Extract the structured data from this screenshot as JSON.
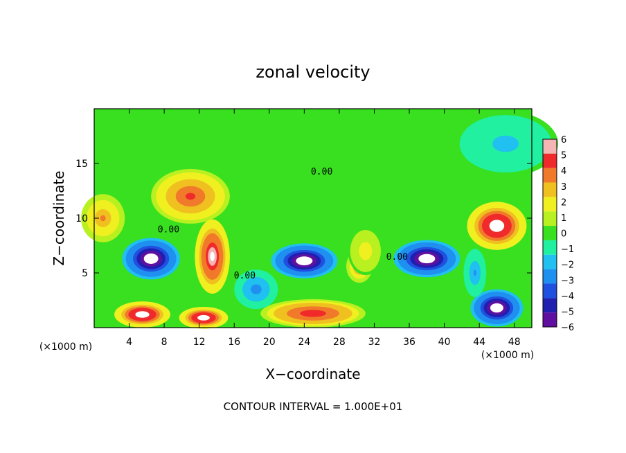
{
  "chart_data": {
    "type": "heatmap",
    "title": "zonal velocity",
    "xlabel": "X−coordinate",
    "ylabel": "Z−coordinate",
    "x_unit": "(×1000 m)",
    "z_unit": "(×1000 m)",
    "footer": "CONTOUR INTERVAL = 1.000E+01",
    "xlim": [
      0,
      50
    ],
    "zlim": [
      0,
      20
    ],
    "x_ticks": [
      4,
      8,
      12,
      16,
      20,
      24,
      28,
      32,
      36,
      40,
      44,
      48
    ],
    "z_ticks": [
      5,
      10,
      15
    ],
    "colorbar": {
      "levels": [
        6,
        5,
        4,
        3,
        2,
        1,
        0,
        -1,
        -2,
        -3,
        -4,
        -5,
        -6
      ],
      "level_labels": [
        "6",
        "5",
        "4",
        "3",
        "2",
        "1",
        "0",
        "−1",
        "−2",
        "−3",
        "−4",
        "−5",
        "−6"
      ],
      "colors": [
        "#f5b5b5",
        "#f02a2a",
        "#f07a2a",
        "#f0c020",
        "#f0f020",
        "#b8f020",
        "#38e020",
        "#20f0a0",
        "#20c0f0",
        "#2090f0",
        "#2050e0",
        "#2020b0",
        "#6010a0"
      ]
    },
    "contour_labels": [
      {
        "text": "0.00",
        "x": 26.0,
        "z": 14.0
      },
      {
        "text": "0.00",
        "x": 8.5,
        "z": 8.7
      },
      {
        "text": "0.00",
        "x": 17.2,
        "z": 4.5
      },
      {
        "text": "0.00",
        "x": 34.6,
        "z": 6.2
      }
    ],
    "blobs": [
      {
        "x": 11,
        "z": 12,
        "rx": 4.5,
        "rz": 2.5,
        "v": 4.6
      },
      {
        "x": 1,
        "z": 10,
        "rx": 2.5,
        "rz": 2.2,
        "v": 3.6
      },
      {
        "x": 13.5,
        "z": 6.5,
        "rx": 2.0,
        "rz": 3.4,
        "v": 6.5
      },
      {
        "x": 24,
        "z": 6.1,
        "rx": 3.8,
        "rz": 1.6,
        "v": -7.0
      },
      {
        "x": 6.5,
        "z": 6.3,
        "rx": 3.3,
        "rz": 1.9,
        "v": -7.0
      },
      {
        "x": 38,
        "z": 6.3,
        "rx": 3.8,
        "rz": 1.7,
        "v": -7.0
      },
      {
        "x": 46,
        "z": 9.3,
        "rx": 3.4,
        "rz": 2.2,
        "v": 7.0
      },
      {
        "x": 25,
        "z": 1.3,
        "rx": 6.0,
        "rz": 1.3,
        "v": 5.5
      },
      {
        "x": 5.5,
        "z": 1.2,
        "rx": 3.2,
        "rz": 1.2,
        "v": 7.0
      },
      {
        "x": 12.5,
        "z": 0.9,
        "rx": 2.8,
        "rz": 1.0,
        "v": 7.0
      },
      {
        "x": 46,
        "z": 1.8,
        "rx": 3.0,
        "rz": 1.7,
        "v": -7.0
      },
      {
        "x": 30.3,
        "z": 5.6,
        "rx": 1.5,
        "rz": 1.5,
        "v": 4.0
      },
      {
        "x": 47,
        "z": 16.8,
        "rx": 6.0,
        "rz": 3.0,
        "v": -1.7
      },
      {
        "x": 31,
        "z": 7.0,
        "rx": 2.0,
        "rz": 2.2,
        "v": 2.0
      },
      {
        "x": 18.5,
        "z": 3.5,
        "rx": 2.5,
        "rz": 1.8,
        "v": -3.0
      },
      {
        "x": 43.5,
        "z": 5.0,
        "rx": 1.3,
        "rz": 2.2,
        "v": -2.5
      }
    ],
    "grid": false,
    "legend": "right"
  }
}
